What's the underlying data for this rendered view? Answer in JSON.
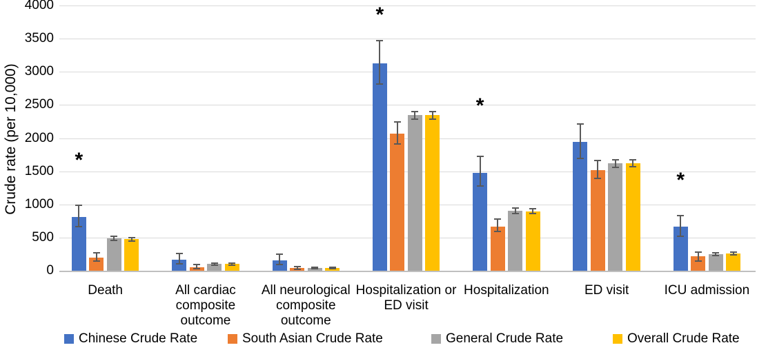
{
  "chart_data": {
    "type": "bar",
    "title": "",
    "xlabel": "",
    "ylabel": "Crude rate (per 10,000)",
    "ylim": [
      0,
      4000
    ],
    "ytick_step": 500,
    "grid": true,
    "legend_position": "bottom",
    "categories": [
      "Death",
      "All cardiac\ncomposite\noutcome",
      "All neurological\ncomposite\noutcome",
      "Hospitalization or\nED visit",
      "Hospitalization",
      "ED visit",
      "ICU admission"
    ],
    "series": [
      {
        "name": "Chinese Crude Rate",
        "color": "#4472C4",
        "values": [
          810,
          165,
          155,
          3130,
          1480,
          1940,
          670
        ],
        "error_low": [
          660,
          105,
          95,
          2820,
          1275,
          1695,
          520
        ],
        "error_high": [
          990,
          260,
          250,
          3470,
          1720,
          2215,
          830
        ]
      },
      {
        "name": "South Asian Crude Rate",
        "color": "#ED7D31",
        "values": [
          200,
          55,
          45,
          2070,
          670,
          1520,
          215
        ],
        "error_low": [
          145,
          30,
          25,
          1910,
          590,
          1390,
          150
        ],
        "error_high": [
          265,
          95,
          65,
          2240,
          780,
          1665,
          280
        ]
      },
      {
        "name": "General Crude Rate",
        "color": "#A5A5A5",
        "values": [
          490,
          100,
          42,
          2350,
          900,
          1620,
          250
        ],
        "error_low": [
          455,
          85,
          30,
          2290,
          860,
          1560,
          230
        ],
        "error_high": [
          520,
          115,
          55,
          2395,
          945,
          1675,
          275
        ]
      },
      {
        "name": "Overall Crude Rate",
        "color": "#FFC000",
        "values": [
          475,
          100,
          40,
          2345,
          895,
          1625,
          260
        ],
        "error_low": [
          450,
          88,
          30,
          2290,
          860,
          1570,
          240
        ],
        "error_high": [
          500,
          112,
          50,
          2400,
          930,
          1675,
          280
        ]
      }
    ],
    "significance_markers": [
      {
        "category_index": 0,
        "symbol": "*",
        "y": 1700
      },
      {
        "category_index": 3,
        "symbol": "*",
        "y": 3900
      },
      {
        "category_index": 4,
        "symbol": "*",
        "y": 2525
      },
      {
        "category_index": 6,
        "symbol": "*",
        "y": 1400
      }
    ],
    "colors": {
      "error_bar": "#595959",
      "gridline": "#D9D9D9",
      "axis_line": "#BFBFBF",
      "text": "#000000",
      "background": "#FFFFFF"
    }
  }
}
